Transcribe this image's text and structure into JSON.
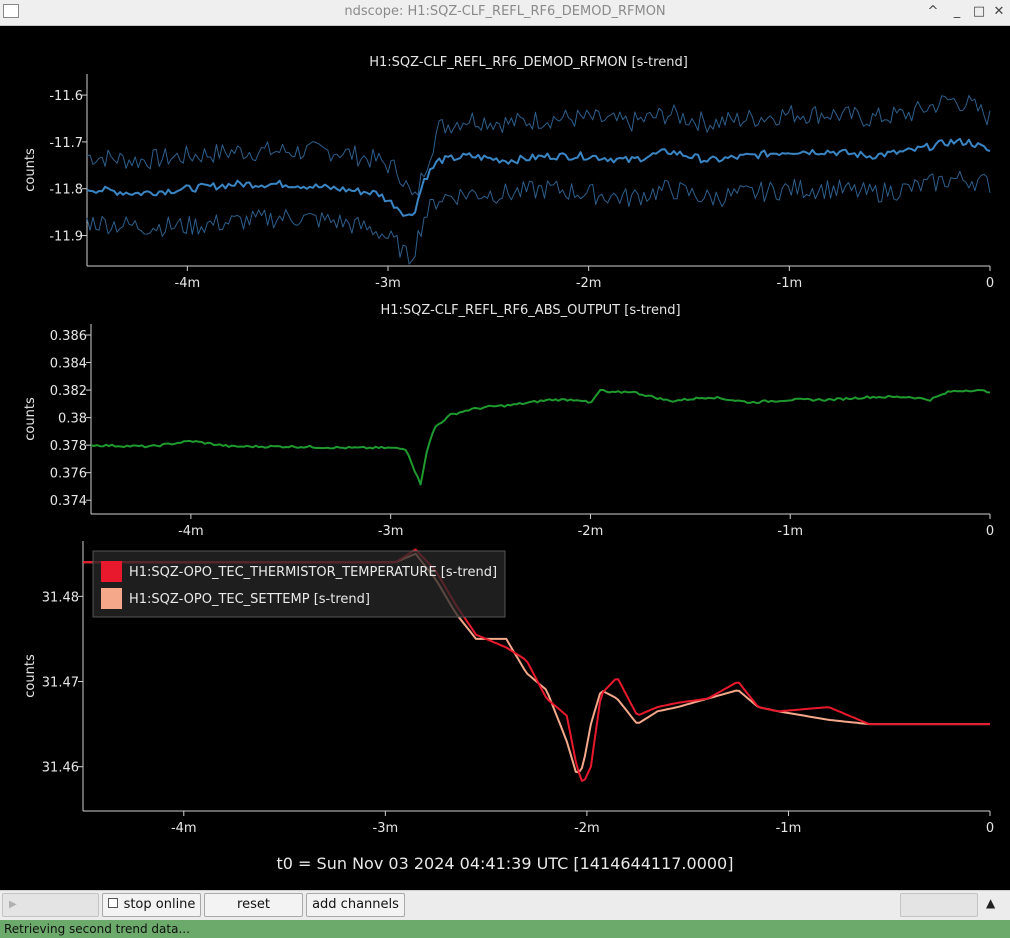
{
  "window": {
    "title": "ndscope: H1:SQZ-CLF_REFL_RF6_DEMOD_RFMON",
    "btn_up": "^",
    "btn_min": "_",
    "btn_max": "□",
    "btn_close": "✕"
  },
  "footer": {
    "t0_text": "t0 = Sun Nov 03 2024 04:41:39 UTC [1414644117.0000]"
  },
  "toolbar": {
    "play_label": "",
    "stop_online_label": "stop online",
    "reset_label": "reset",
    "add_channels_label": "add channels",
    "right_label": "",
    "scroll_up": "▲"
  },
  "status": {
    "message": "Retrieving second trend data..."
  },
  "colors": {
    "rfmon": "#3a85c4",
    "rfmon_env": "#2d5f8c",
    "abs_output": "#1f9a2e",
    "thermistor": "#e8192c",
    "settemp": "#f5a88a",
    "axis": "#cfcfcf",
    "background": "#000000"
  },
  "chart_data": [
    {
      "type": "line",
      "title": "H1:SQZ-CLF_REFL_RF6_DEMOD_RFMON [s-trend]",
      "ylabel": "counts",
      "xlabel": "",
      "x_ticks": [
        "-4m",
        "-3m",
        "-2m",
        "-1m",
        "0"
      ],
      "y_ticks": [
        "-11.6",
        "-11.7",
        "-11.8",
        "-11.9"
      ],
      "xlim": [
        -4.5,
        0
      ],
      "ylim": [
        -11.965,
        -11.555
      ],
      "x": [
        -4.5,
        -4.25,
        -4.0,
        -3.75,
        -3.5,
        -3.25,
        -3.05,
        -2.95,
        -2.9,
        -2.87,
        -2.82,
        -2.75,
        -2.6,
        -2.4,
        -2.2,
        -2.0,
        -1.8,
        -1.6,
        -1.4,
        -1.2,
        -1.0,
        -0.8,
        -0.6,
        -0.4,
        -0.2,
        -0.1,
        0.0
      ],
      "series": [
        {
          "role": "max",
          "values": [
            -11.73,
            -11.74,
            -11.73,
            -11.72,
            -11.72,
            -11.72,
            -11.74,
            -11.76,
            -11.8,
            -11.83,
            -11.76,
            -11.67,
            -11.65,
            -11.66,
            -11.65,
            -11.65,
            -11.66,
            -11.64,
            -11.66,
            -11.65,
            -11.64,
            -11.64,
            -11.65,
            -11.64,
            -11.61,
            -11.62,
            -11.65
          ]
        },
        {
          "role": "mean",
          "values": [
            -11.8,
            -11.81,
            -11.8,
            -11.79,
            -11.79,
            -11.8,
            -11.81,
            -11.84,
            -11.86,
            -11.85,
            -11.78,
            -11.74,
            -11.73,
            -11.74,
            -11.73,
            -11.73,
            -11.74,
            -11.72,
            -11.74,
            -11.73,
            -11.72,
            -11.72,
            -11.73,
            -11.72,
            -11.7,
            -11.7,
            -11.72
          ]
        },
        {
          "role": "min",
          "values": [
            -11.87,
            -11.88,
            -11.88,
            -11.87,
            -11.86,
            -11.87,
            -11.89,
            -11.92,
            -11.95,
            -11.93,
            -11.86,
            -11.82,
            -11.81,
            -11.81,
            -11.8,
            -11.81,
            -11.82,
            -11.8,
            -11.82,
            -11.81,
            -11.8,
            -11.8,
            -11.81,
            -11.8,
            -11.78,
            -11.78,
            -11.79
          ]
        }
      ]
    },
    {
      "type": "line",
      "title": "H1:SQZ-CLF_REFL_RF6_ABS_OUTPUT [s-trend]",
      "ylabel": "counts",
      "xlabel": "",
      "x_ticks": [
        "-4m",
        "-3m",
        "-2m",
        "-1m",
        "0"
      ],
      "y_ticks": [
        "0.386",
        "0.384",
        "0.382",
        "0.38",
        "0.378",
        "0.376",
        "0.374"
      ],
      "xlim": [
        -4.5,
        0
      ],
      "ylim": [
        0.373,
        0.3868
      ],
      "x": [
        -4.5,
        -4.2,
        -4.0,
        -3.8,
        -3.5,
        -3.2,
        -3.0,
        -2.92,
        -2.87,
        -2.85,
        -2.82,
        -2.78,
        -2.7,
        -2.6,
        -2.5,
        -2.4,
        -2.2,
        -2.05,
        -2.0,
        -1.95,
        -1.9,
        -1.8,
        -1.6,
        -1.4,
        -1.2,
        -1.0,
        -0.8,
        -0.6,
        -0.4,
        -0.3,
        -0.2,
        -0.1,
        0.0
      ],
      "series": [
        {
          "name": "H1:SQZ-CLF_REFL_RF6_ABS_OUTPUT",
          "values": [
            0.378,
            0.3779,
            0.3783,
            0.3779,
            0.3779,
            0.3778,
            0.3778,
            0.3777,
            0.3758,
            0.3752,
            0.3775,
            0.3793,
            0.3802,
            0.3806,
            0.3808,
            0.3809,
            0.3813,
            0.3813,
            0.381,
            0.382,
            0.3818,
            0.3819,
            0.3812,
            0.3815,
            0.3811,
            0.3813,
            0.3813,
            0.3815,
            0.3815,
            0.3813,
            0.3819,
            0.382,
            0.3819
          ]
        }
      ]
    },
    {
      "type": "line",
      "title": "",
      "ylabel": "counts",
      "xlabel": "",
      "x_ticks": [
        "-4m",
        "-3m",
        "-2m",
        "-1m",
        "0"
      ],
      "y_ticks": [
        "31.48",
        "31.47",
        "31.46"
      ],
      "xlim": [
        -4.5,
        0
      ],
      "ylim": [
        31.4548,
        31.4865
      ],
      "legend": [
        "H1:SQZ-OPO_TEC_THERMISTOR_TEMPERATURE [s-trend]",
        "H1:SQZ-OPO_TEC_SETTEMP [s-trend]"
      ],
      "legend_position": "top-left",
      "x": [
        -4.5,
        -3.2,
        -2.95,
        -2.85,
        -2.75,
        -2.65,
        -2.55,
        -2.4,
        -2.3,
        -2.2,
        -2.1,
        -2.05,
        -2.02,
        -1.98,
        -1.93,
        -1.85,
        -1.75,
        -1.65,
        -1.55,
        -1.4,
        -1.25,
        -1.15,
        -1.05,
        -0.8,
        -0.6,
        -0.4,
        -0.2,
        0.0
      ],
      "series": [
        {
          "name": "H1:SQZ-OPO_TEC_THERMISTOR_TEMPERATURE",
          "values": [
            31.484,
            31.484,
            31.484,
            31.4855,
            31.483,
            31.479,
            31.4755,
            31.474,
            31.4725,
            31.468,
            31.466,
            31.46,
            31.458,
            31.46,
            31.4685,
            31.4705,
            31.466,
            31.467,
            31.4675,
            31.468,
            31.47,
            31.467,
            31.4665,
            31.467,
            31.465,
            31.465,
            31.465,
            31.465
          ]
        },
        {
          "name": "H1:SQZ-OPO_TEC_SETTEMP",
          "values": [
            31.484,
            31.484,
            31.484,
            31.485,
            31.482,
            31.478,
            31.475,
            31.475,
            31.471,
            31.469,
            31.463,
            31.459,
            31.46,
            31.465,
            31.469,
            31.468,
            31.465,
            31.4665,
            31.467,
            31.468,
            31.469,
            31.467,
            31.4665,
            31.4655,
            31.465,
            31.465,
            31.465,
            31.465
          ]
        }
      ]
    }
  ]
}
